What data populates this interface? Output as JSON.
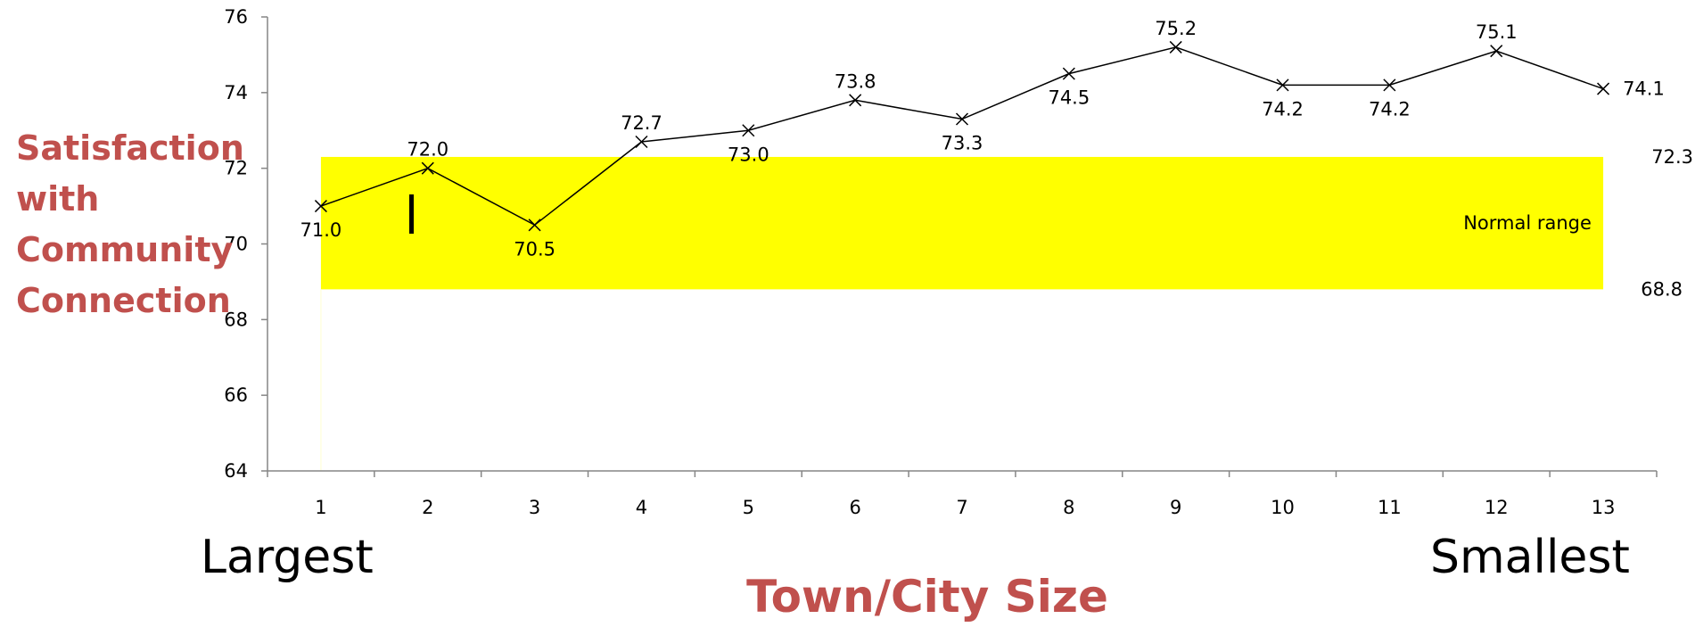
{
  "chart_data": {
    "type": "line",
    "title": "",
    "xlabel": "Town/City Size",
    "ylabel_lines": [
      "Satisfaction",
      "with",
      "Community",
      "Connection"
    ],
    "x_end_labels": {
      "left": "Largest",
      "right": "Smallest"
    },
    "categories": [
      "1",
      "2",
      "3",
      "4",
      "5",
      "6",
      "7",
      "8",
      "9",
      "10",
      "11",
      "12",
      "13"
    ],
    "values": [
      71.0,
      72.0,
      70.5,
      72.7,
      73.0,
      73.8,
      73.3,
      74.5,
      75.2,
      74.2,
      74.2,
      75.1,
      74.1
    ],
    "value_labels": [
      "71.0",
      "72.0",
      "70.5",
      "72.7",
      "73.0",
      "73.8",
      "73.3",
      "74.5",
      "75.2",
      "74.2",
      "74.2",
      "75.1",
      "74.1"
    ],
    "ylim": [
      64,
      76
    ],
    "yticks": [
      64,
      66,
      68,
      70,
      72,
      74,
      76
    ],
    "grid": false,
    "marker": "x",
    "line_color": "#000000",
    "band": {
      "label": "Normal range",
      "low": 68.8,
      "high": 72.3,
      "low_label": "68.8",
      "high_label": "72.3",
      "color": "#ffff00"
    },
    "label_color": "#c0504d"
  }
}
